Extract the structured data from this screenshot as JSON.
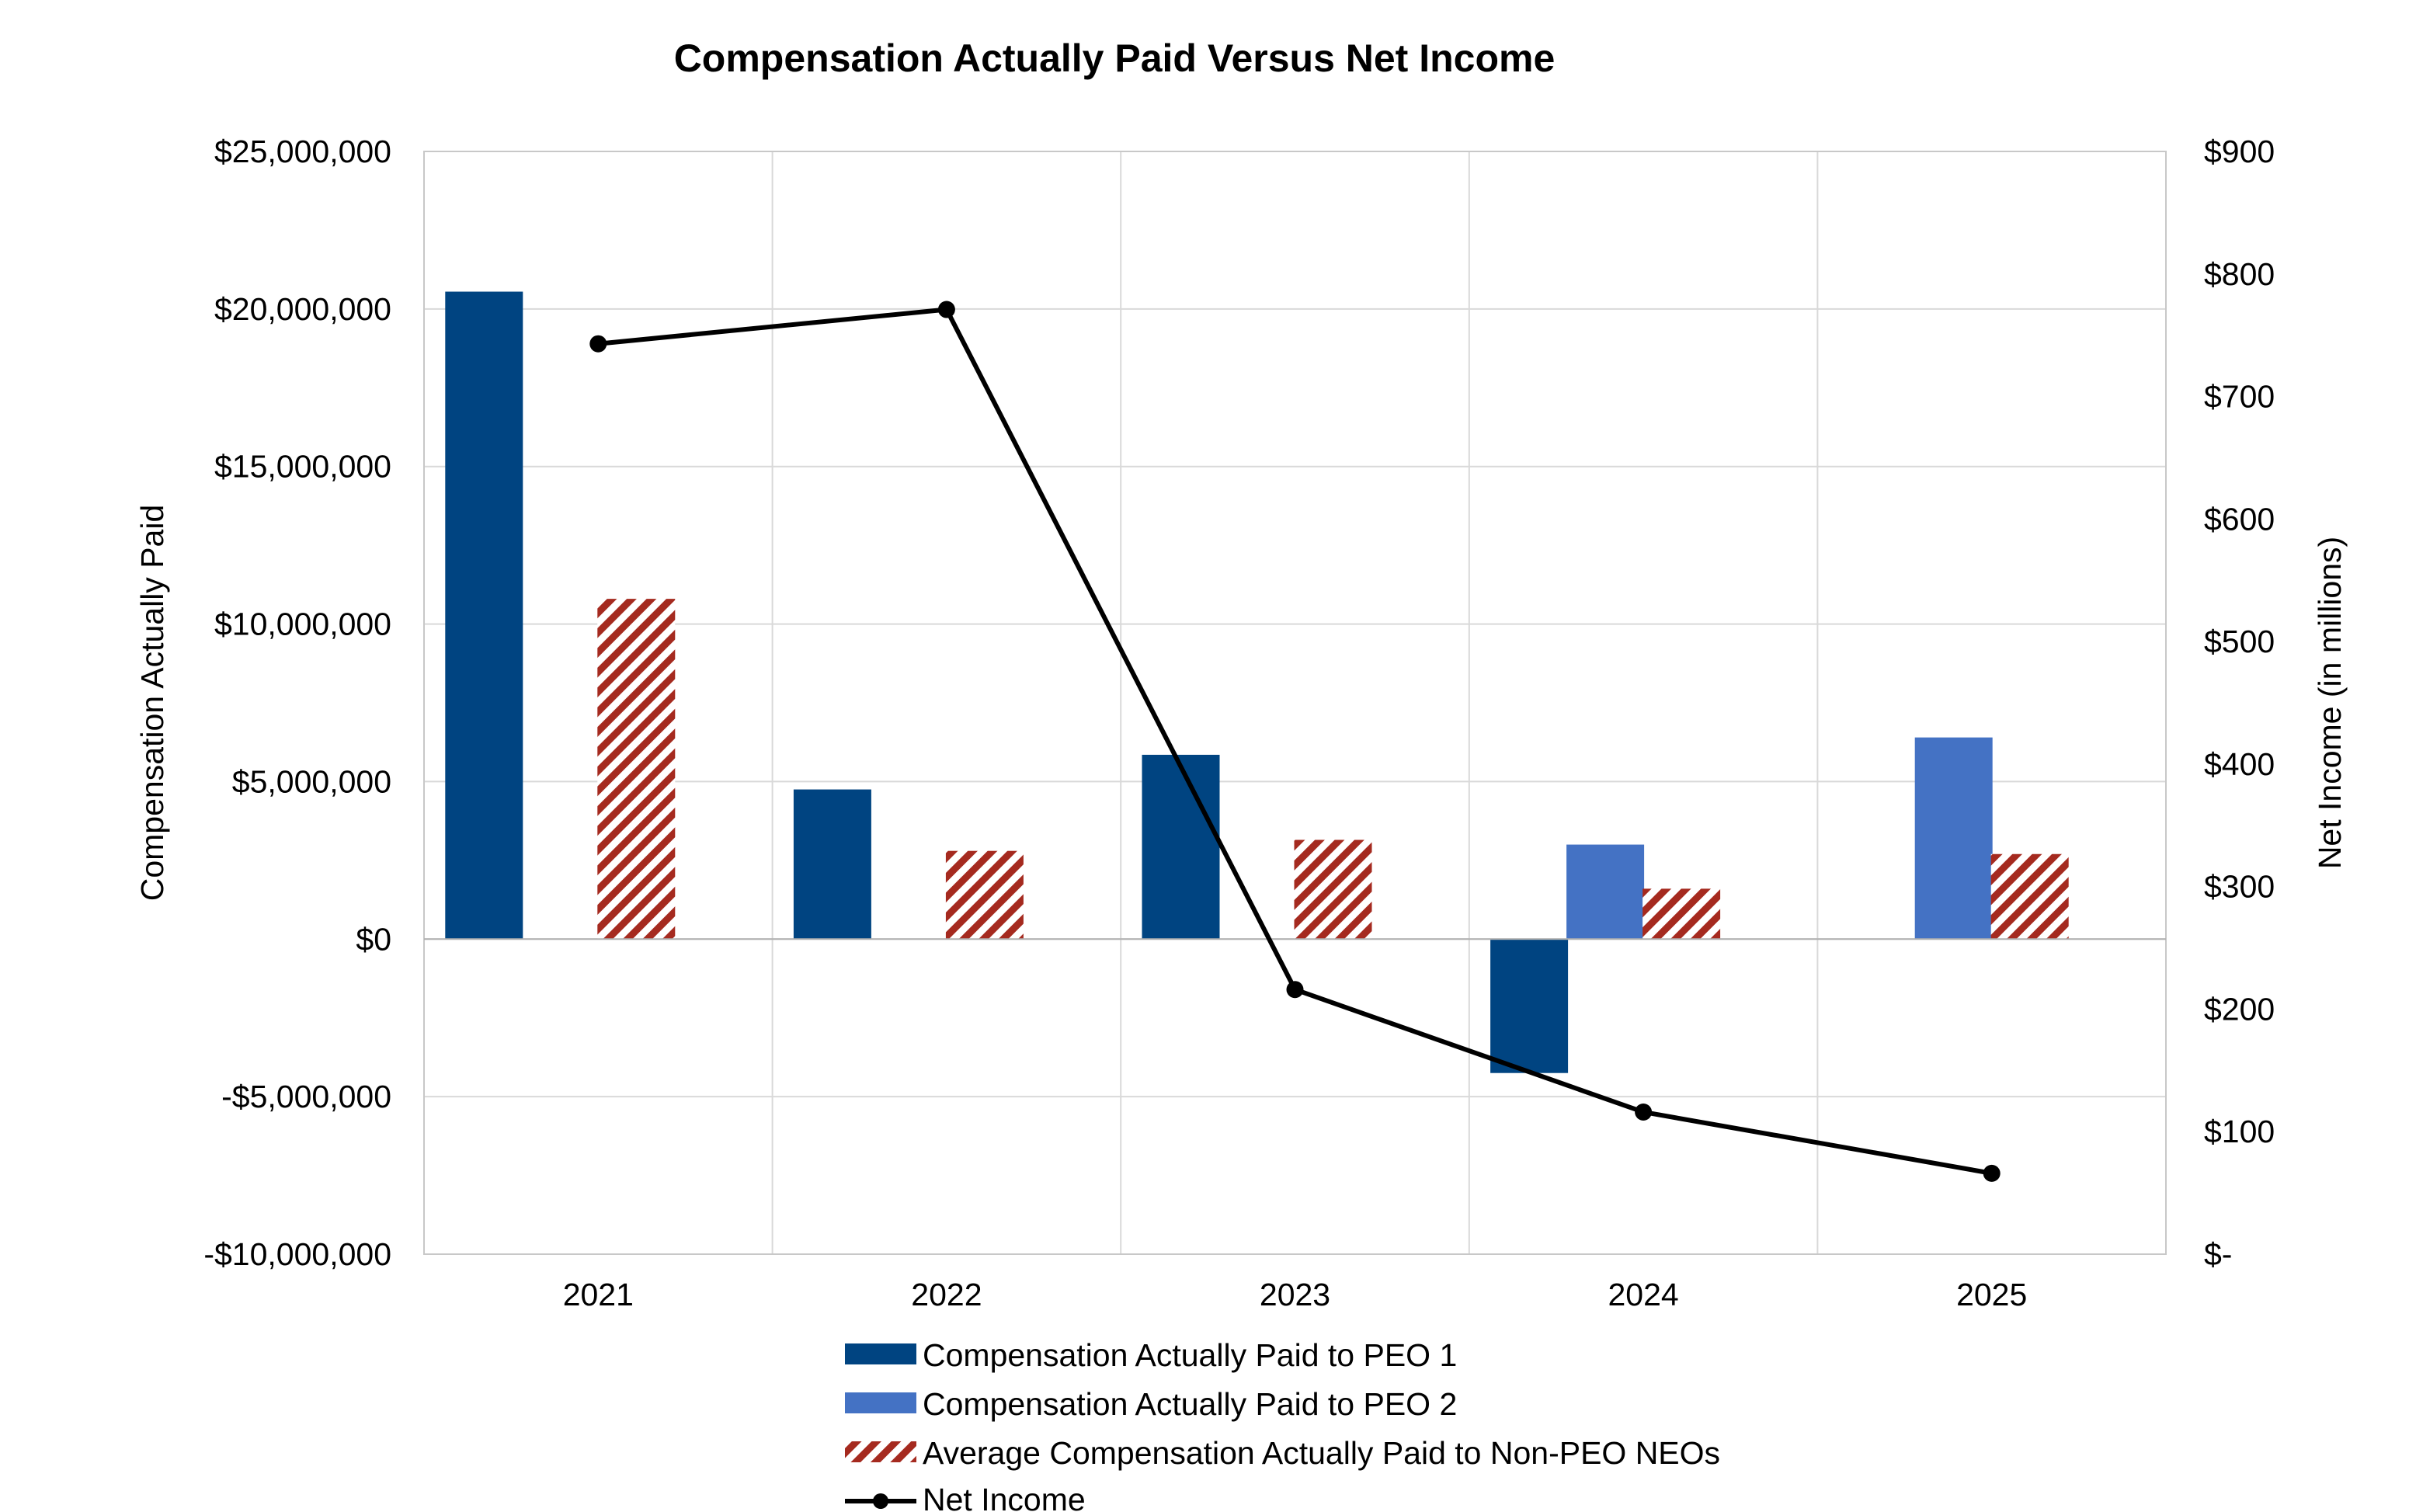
{
  "chart_data": {
    "type": "bar",
    "title": "Compensation Actually Paid Versus Net Income",
    "categories": [
      "2021",
      "2022",
      "2023",
      "2024",
      "2025"
    ],
    "ylabel_left": "Compensation Actually Paid",
    "ylabel_right": "Net Income (in millions)",
    "ylim_left": [
      -10000000,
      25000000
    ],
    "ylim_right": [
      0,
      900
    ],
    "left_ticks": [
      {
        "value": 25000000,
        "label": "$25,000,000"
      },
      {
        "value": 20000000,
        "label": "$20,000,000"
      },
      {
        "value": 15000000,
        "label": "$15,000,000"
      },
      {
        "value": 10000000,
        "label": "$10,000,000"
      },
      {
        "value": 5000000,
        "label": "$5,000,000"
      },
      {
        "value": 0,
        "label": "$0"
      },
      {
        "value": -5000000,
        "label": "-$5,000,000"
      },
      {
        "value": -10000000,
        "label": "-$10,000,000"
      }
    ],
    "right_ticks": [
      {
        "value": 900,
        "label": "$900"
      },
      {
        "value": 800,
        "label": "$800"
      },
      {
        "value": 700,
        "label": "$700"
      },
      {
        "value": 600,
        "label": "$600"
      },
      {
        "value": 500,
        "label": "$500"
      },
      {
        "value": 400,
        "label": "$400"
      },
      {
        "value": 300,
        "label": "$300"
      },
      {
        "value": 200,
        "label": "$200"
      },
      {
        "value": 100,
        "label": "$100"
      },
      {
        "value": 0,
        "label": "$-"
      }
    ],
    "grid": true,
    "legend_position": "bottom",
    "series": [
      {
        "name": "Compensation Actually Paid to PEO 1",
        "type": "bar",
        "axis": "left",
        "color": "#004481",
        "pattern": "solid",
        "values": [
          20550000,
          4750000,
          5850000,
          -4250000,
          null
        ]
      },
      {
        "name": "Compensation Actually Paid to PEO 2",
        "type": "bar",
        "axis": "left",
        "color": "#4472C4",
        "pattern": "solid",
        "values": [
          null,
          null,
          null,
          3000000,
          6400000
        ]
      },
      {
        "name": "Average Compensation Actually Paid to Non-PEO NEOs",
        "type": "bar",
        "axis": "left",
        "color": "#A52A1F",
        "pattern": "diagonal-stripes",
        "values": [
          10800000,
          2800000,
          3150000,
          1600000,
          2700000
        ]
      },
      {
        "name": "Net Income",
        "type": "line",
        "axis": "right",
        "color": "#000000",
        "marker": "circle",
        "values": [
          743,
          771,
          216,
          116,
          66
        ]
      }
    ]
  }
}
